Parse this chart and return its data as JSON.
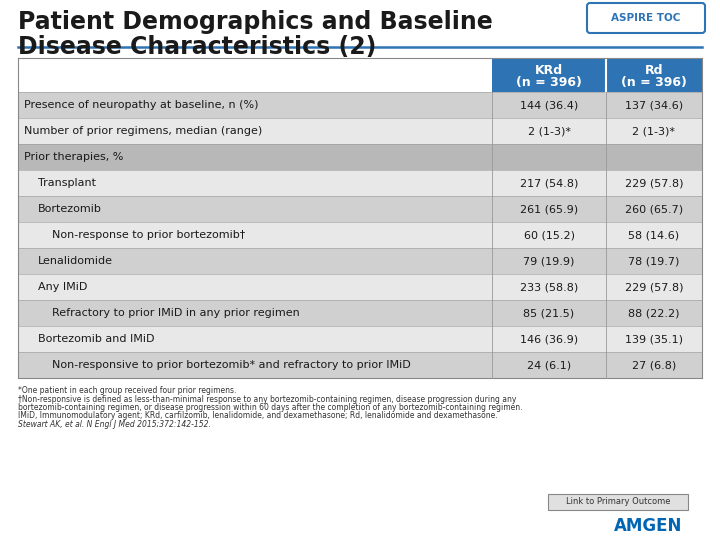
{
  "title_line1": "Patient Demographics and Baseline",
  "title_line2": "Disease Characteristics (2)",
  "aspire_toc_label": "ASPIRE TOC",
  "rows": [
    {
      "label": "Presence of neuropathy at baseline, n (%)",
      "krd": "144 (36.4)",
      "rd": "137 (34.6)",
      "indent": 0,
      "bg": "#d0d0d0",
      "section": false
    },
    {
      "label": "Number of prior regimens, median (range)",
      "krd": "2 (1-3)*",
      "rd": "2 (1-3)*",
      "indent": 0,
      "bg": "#e8e8e8",
      "section": false
    },
    {
      "label": "Prior therapies, %",
      "krd": "",
      "rd": "",
      "indent": 0,
      "bg": "#b8b8b8",
      "section": true
    },
    {
      "label": "Transplant",
      "krd": "217 (54.8)",
      "rd": "229 (57.8)",
      "indent": 1,
      "bg": "#e8e8e8",
      "section": false
    },
    {
      "label": "Bortezomib",
      "krd": "261 (65.9)",
      "rd": "260 (65.7)",
      "indent": 1,
      "bg": "#d0d0d0",
      "section": false
    },
    {
      "label": "Non-response to prior bortezomib†",
      "krd": "60 (15.2)",
      "rd": "58 (14.6)",
      "indent": 2,
      "bg": "#e8e8e8",
      "section": false
    },
    {
      "label": "Lenalidomide",
      "krd": "79 (19.9)",
      "rd": "78 (19.7)",
      "indent": 1,
      "bg": "#d0d0d0",
      "section": false
    },
    {
      "label": "Any IMiD",
      "krd": "233 (58.8)",
      "rd": "229 (57.8)",
      "indent": 1,
      "bg": "#e8e8e8",
      "section": false
    },
    {
      "label": "Refractory to prior IMiD in any prior regimen",
      "krd": "85 (21.5)",
      "rd": "88 (22.2)",
      "indent": 2,
      "bg": "#d0d0d0",
      "section": false
    },
    {
      "label": "Bortezomib and IMiD",
      "krd": "146 (36.9)",
      "rd": "139 (35.1)",
      "indent": 1,
      "bg": "#e8e8e8",
      "section": false
    },
    {
      "label": "Non-responsive to prior bortezomib* and refractory to prior IMiD",
      "krd": "24 (6.1)",
      "rd": "27 (6.8)",
      "indent": 2,
      "bg": "#d0d0d0",
      "section": false
    }
  ],
  "header_bg": "#2e74b5",
  "header_text_color": "#ffffff",
  "title_color": "#1a1a1a",
  "line_color": "#2e74b5",
  "footnote_line1": "*One patient in each group received four prior regimens.",
  "footnote_line2": "†Non-responsive is defined as less-than-minimal response to any bortezomib-containing regimen, disease progression during any",
  "footnote_line3": "bortezomib-containing regimen, or disease progression within 60 days after the completion of any bortezomib-containing regimen.",
  "footnote_line4": "IMiD, Immunomodulatory agent; KRd, carfilzomib, lenalidomide, and dexamethasone; Rd, lenalidomide and dexamethasone.",
  "footnote_line5": "Stewart AK, et al. N Engl J Med 2015;372:142-152.",
  "link_label": "Link to Primary Outcome",
  "amgen_color": "#0066b3",
  "bg_color": "#ffffff",
  "border_color": "#888888",
  "cell_line_color": "#999999"
}
